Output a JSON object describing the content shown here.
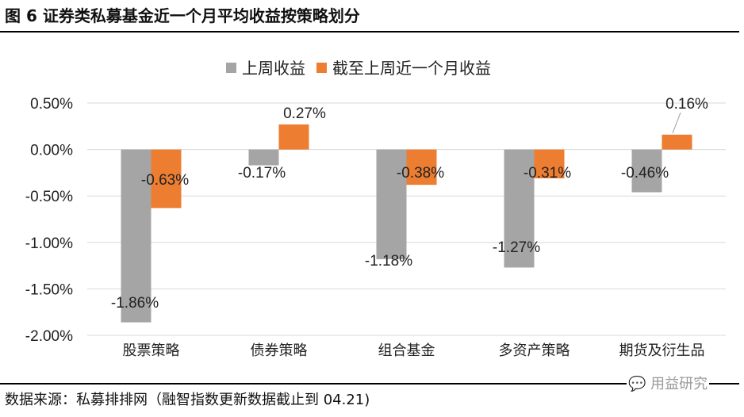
{
  "title": "图 6  证券类私募基金近一个月平均收益按策略划分",
  "source": "数据来源：私募排排网（融智指数更新数据截止到 04.21)",
  "watermark": "用益研究",
  "chart_data": {
    "type": "bar",
    "categories": [
      "股票策略",
      "债券策略",
      "组合基金",
      "多资产策略",
      "期货及衍生品"
    ],
    "series": [
      {
        "name": "上周收益",
        "color": "#a5a5a5",
        "values": [
          -1.86,
          -0.17,
          -1.18,
          -1.27,
          -0.46
        ]
      },
      {
        "name": "截至上周近一个月收益",
        "color": "#ed7d31",
        "values": [
          -0.63,
          0.27,
          -0.38,
          -0.31,
          0.16
        ]
      }
    ],
    "yticks": [
      "0.50%",
      "0.00%",
      "-0.50%",
      "-1.00%",
      "-1.50%",
      "-2.00%"
    ],
    "ylim": [
      -2.0,
      0.5
    ],
    "unit": "%",
    "grid": true,
    "legend": "top"
  }
}
